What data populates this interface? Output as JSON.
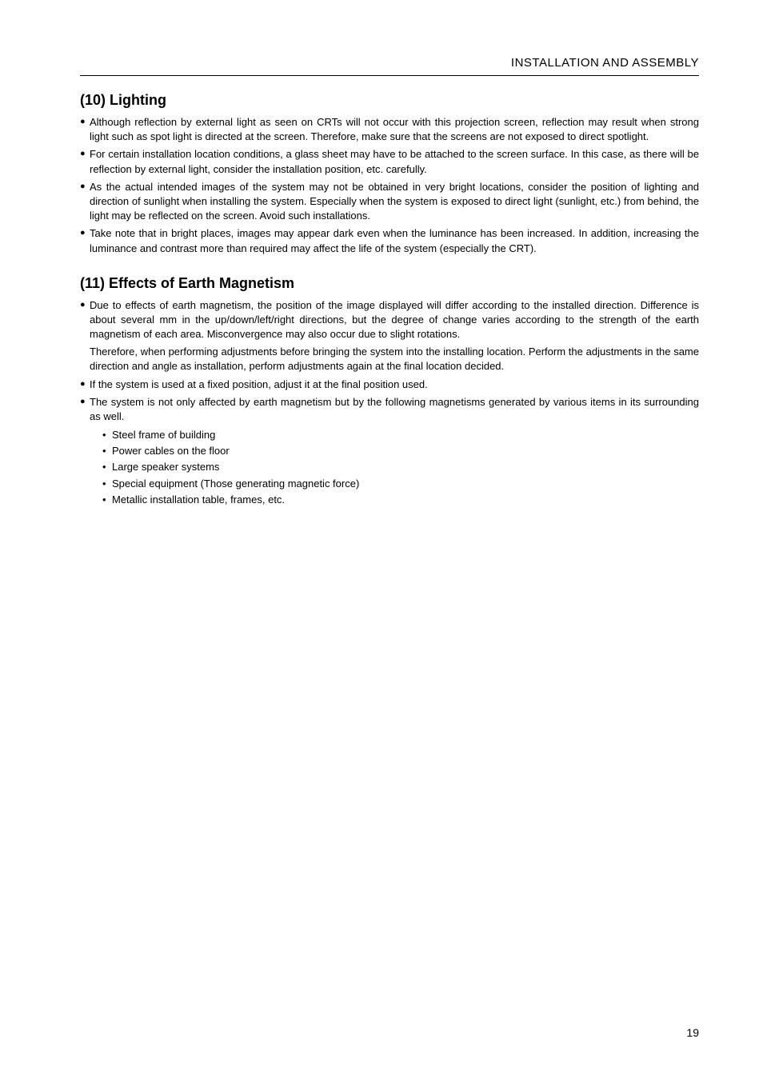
{
  "header": {
    "breadcrumb": "INSTALLATION AND ASSEMBLY"
  },
  "sections": [
    {
      "heading": "(10) Lighting",
      "bullets": [
        {
          "text": "Although reflection by external light as seen on CRTs will not occur with this projection screen, reflection may result when strong light such as spot light is directed at the screen. Therefore, make sure that the screens are not exposed to direct spotlight."
        },
        {
          "text": "For certain installation location conditions, a glass sheet may have to be attached to the screen surface. In this case, as there will be reflection by external light, consider the installation position, etc. carefully."
        },
        {
          "text": "As the actual intended images of the system may not be obtained in very bright locations, consider the position of lighting and direction of sunlight when installing the system. Especially when the system is exposed to direct light (sunlight, etc.) from behind, the light may be reflected on the screen. Avoid such installations."
        },
        {
          "text": "Take note that in bright places, images may appear dark even when the luminance has been increased. In addition, increasing the luminance and contrast more than required may affect the life of the system (especially the CRT)."
        }
      ]
    },
    {
      "heading": "(11) Effects of Earth Magnetism",
      "bullets": [
        {
          "text": "Due to effects of earth magnetism, the position of the image displayed will differ according to the installed direction. Difference is about several mm in the up/down/left/right directions, but the degree of change varies according to the strength of the earth magnetism of each area. Misconvergence may also occur due to slight rotations.",
          "continue": "Therefore, when performing adjustments before bringing the system into the installing location. Perform the adjustments in the same direction and angle as installation, perform adjustments again at the final location decided."
        },
        {
          "text": "If the system is used at a fixed position, adjust it at the final position used."
        },
        {
          "text": "The system is not only affected by earth magnetism but by the following magnetisms generated by various items in its surrounding as well.",
          "subitems": [
            "Steel frame of building",
            "Power cables on the floor",
            "Large speaker systems",
            "Special equipment (Those generating magnetic force)",
            "Metallic installation table, frames, etc."
          ]
        }
      ]
    }
  ],
  "pageNumber": "19"
}
